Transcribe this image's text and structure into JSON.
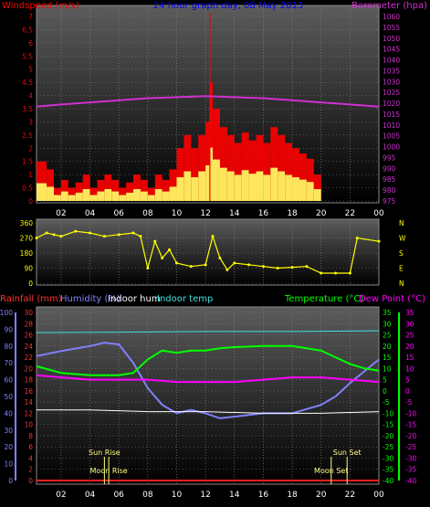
{
  "colors": {
    "background": "#000000",
    "plot_background_top": "#5c5c5c",
    "plot_background_bottom": "#000000",
    "grid": "#8a8a8a",
    "wind_speed": "#ff0000",
    "wind_gust": "#ffff66",
    "wind_avg": "#4a7fd4",
    "barometer": "#d030d0",
    "wind_direction": "#ffff00",
    "rainfall": "#ff2020",
    "humidity": "#8080ff",
    "indoor_humidity": "#ffffff",
    "indoor_temp": "#40e0e0",
    "temperature": "#00ff00",
    "dew_point": "#ff00ff",
    "rain_axis": "#ff3030",
    "hum_axis": "#8080ff",
    "temp_axis": "#00ff00",
    "dew_axis": "#ff00ff",
    "dir_axis": "#ffff00",
    "baro_axis": "#d030d0",
    "sun_moon": "#ffff80",
    "title": "#0000ff"
  },
  "chart_data": [
    {
      "type": "line",
      "title": "24 hour graph day, 08 May 2013",
      "ylabel_left": "Windspeed (m/s)",
      "ylabel_right": "Barometer (hpa)",
      "x_ticks": [
        "02",
        "04",
        "06",
        "08",
        "10",
        "12",
        "14",
        "16",
        "18",
        "20",
        "22",
        "00"
      ],
      "y_left_ticks": [
        "7",
        "6.5",
        "6",
        "5.5",
        "5",
        "4.5",
        "4",
        "3.5",
        "3",
        "2.5",
        "2",
        "1.5",
        "1",
        "0.5",
        "0"
      ],
      "y_left_range": [
        0,
        7
      ],
      "y_right_ticks": [
        "1060",
        "1055",
        "1050",
        "1045",
        "1040",
        "1035",
        "1030",
        "1025",
        "1020",
        "1015",
        "1010",
        "1005",
        "1000",
        "995",
        "990",
        "985",
        "980",
        "975"
      ],
      "y_right_range": [
        973,
        1061
      ],
      "x_range_hours": [
        0.3,
        24
      ],
      "series": [
        {
          "name": "Windspeed",
          "x": [
            0.3,
            1,
            1.5,
            2,
            2.5,
            3,
            3.5,
            4,
            4.5,
            5,
            5.5,
            6,
            6.5,
            7,
            7.5,
            8,
            8.5,
            9,
            9.5,
            10,
            10.5,
            11,
            11.5,
            12,
            12.3,
            12.5,
            13,
            13.5,
            14,
            14.5,
            15,
            15.5,
            16,
            16.5,
            17,
            17.5,
            18,
            18.5,
            19,
            19.5,
            20
          ],
          "values": [
            1.5,
            1.2,
            0.5,
            0.8,
            0.5,
            0.7,
            1,
            0.5,
            0.8,
            1,
            0.8,
            0.5,
            0.7,
            1,
            0.8,
            0.5,
            1,
            0.8,
            1.2,
            2,
            2.5,
            2,
            2.5,
            3,
            4.5,
            3.5,
            2.8,
            2.5,
            2.2,
            2.6,
            2.3,
            2.5,
            2.2,
            2.8,
            2.5,
            2.2,
            2,
            1.8,
            1.6,
            1,
            0.5
          ]
        },
        {
          "name": "Barometer",
          "x": [
            0.3,
            2,
            4,
            6,
            8,
            10,
            12,
            14,
            16,
            18,
            20,
            22,
            24
          ],
          "values": [
            1018,
            1019,
            1020,
            1021,
            1022,
            1022.5,
            1023,
            1022.5,
            1022,
            1021,
            1020,
            1019,
            1018
          ]
        }
      ]
    },
    {
      "type": "scatter",
      "y_left_ticks": [
        "360",
        "270",
        "180",
        "90",
        "0"
      ],
      "y_left_range": [
        0,
        360
      ],
      "y_right_ticks": [
        "N",
        "W",
        "S",
        "E",
        "N"
      ],
      "series": [
        {
          "name": "Wind direction",
          "x": [
            0.3,
            1,
            1.5,
            2,
            3,
            4,
            5,
            6,
            7,
            7.5,
            8,
            8.5,
            9,
            9.5,
            10,
            11,
            12,
            12.5,
            13,
            13.5,
            14,
            15,
            16,
            17,
            18,
            19,
            20,
            21,
            22,
            22.5,
            24
          ],
          "values": [
            270,
            300,
            290,
            280,
            310,
            300,
            280,
            290,
            300,
            280,
            90,
            250,
            150,
            200,
            120,
            100,
            110,
            280,
            150,
            80,
            120,
            110,
            100,
            90,
            95,
            100,
            60,
            60,
            60,
            270,
            250
          ]
        }
      ]
    },
    {
      "type": "line",
      "ylabel_left": "Rainfall (mm)",
      "legend": [
        "Humidity (%)",
        "Indoor hum",
        "Indoor temp",
        "Temperature (°C)",
        "Dew Point (°C)"
      ],
      "y_rain_ticks": [
        "30",
        "28",
        "26",
        "24",
        "22",
        "20",
        "18",
        "16",
        "14",
        "12",
        "10",
        "8",
        "6",
        "4",
        "2",
        "0"
      ],
      "y_rain_range": [
        0,
        30
      ],
      "y_hum_ticks": [
        "100",
        "90",
        "80",
        "70",
        "60",
        "50",
        "40",
        "30",
        "20",
        "10",
        "0"
      ],
      "y_hum_range": [
        0,
        100
      ],
      "y_temp_ticks": [
        "35",
        "30",
        "25",
        "20",
        "15",
        "10",
        "5",
        "0",
        "-5",
        "-10",
        "-15",
        "-20",
        "-25",
        "-30",
        "-35",
        "-40"
      ],
      "y_temp_range": [
        -40,
        35
      ],
      "y_dew_ticks": [
        "35",
        "30",
        "25",
        "20",
        "15",
        "10",
        "5",
        "0",
        "-5",
        "-10",
        "-15",
        "-20",
        "-25",
        "-30",
        "-35",
        "-40"
      ],
      "annotations": [
        "Sun Rise",
        "Moon Rise",
        "Moon Set",
        "Sun Set"
      ],
      "series": [
        {
          "name": "Humidity",
          "x": [
            0.3,
            2,
            4,
            5,
            6,
            7,
            8,
            9,
            10,
            11,
            12,
            13,
            14,
            16,
            18,
            20,
            21,
            22,
            23,
            24
          ],
          "values": [
            74,
            77,
            80,
            82,
            81,
            70,
            55,
            45,
            40,
            42,
            40,
            37,
            38,
            40,
            40,
            45,
            50,
            58,
            65,
            72
          ]
        },
        {
          "name": "Indoor hum",
          "x": [
            0.3,
            4,
            8,
            12,
            16,
            20,
            24
          ],
          "values": [
            42,
            42,
            41,
            41,
            40,
            40,
            41
          ]
        },
        {
          "name": "Indoor temp",
          "x": [
            0.3,
            6,
            12,
            18,
            24
          ],
          "values": [
            26,
            26.2,
            26.5,
            26.5,
            26.8
          ]
        },
        {
          "name": "Temperature",
          "x": [
            0.3,
            2,
            4,
            6,
            7,
            8,
            9,
            10,
            11,
            12,
            13,
            14,
            16,
            18,
            19,
            20,
            21,
            22,
            23,
            24
          ],
          "values": [
            11,
            8,
            7,
            7,
            8,
            14,
            18,
            17,
            18,
            18,
            19,
            19.5,
            20,
            20,
            19,
            18,
            15,
            12,
            10,
            9
          ]
        },
        {
          "name": "Dew Point",
          "x": [
            0.3,
            2,
            4,
            6,
            8,
            10,
            12,
            14,
            16,
            18,
            20,
            22,
            24
          ],
          "values": [
            7,
            6,
            5,
            5,
            5,
            4,
            4,
            4,
            5,
            6,
            6,
            5,
            4
          ]
        },
        {
          "name": "Rainfall",
          "x": [
            0.3,
            24
          ],
          "values": [
            0,
            0
          ]
        }
      ]
    }
  ]
}
